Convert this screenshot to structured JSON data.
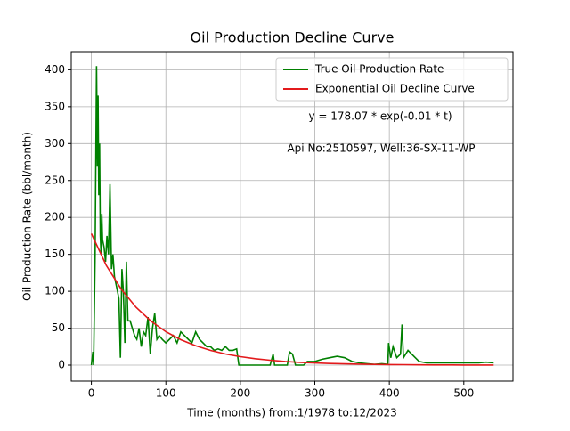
{
  "chart_data": {
    "type": "line",
    "title": "Oil Production Decline Curve",
    "xlabel": "Time (months) from:1/1978 to:12/2023",
    "ylabel": "Oil Production Rate (bbl/month)",
    "annotations": [
      "y = 178.07 * exp(-0.01 * t)",
      "Api No:2510597, Well:36-SX-11-WP"
    ],
    "xlim": [
      -27,
      566
    ],
    "ylim": [
      -21.7,
      424.6
    ],
    "xticks": [
      0,
      100,
      200,
      300,
      400,
      500
    ],
    "yticks": [
      0,
      50,
      100,
      150,
      200,
      250,
      300,
      350,
      400
    ],
    "grid": true,
    "legend": "upper right",
    "series": [
      {
        "name": "True Oil Production Rate",
        "color": "#008000",
        "x": [
          0,
          2,
          3,
          5,
          7,
          8,
          9,
          10,
          11,
          12,
          13,
          14,
          15,
          17,
          19,
          21,
          23,
          25,
          27,
          29,
          31,
          33,
          35,
          37,
          39,
          41,
          43,
          45,
          47,
          49,
          52,
          55,
          58,
          61,
          64,
          67,
          70,
          73,
          76,
          79,
          82,
          85,
          88,
          91,
          95,
          100,
          105,
          110,
          115,
          120,
          125,
          130,
          135,
          140,
          145,
          150,
          155,
          160,
          165,
          170,
          175,
          180,
          185,
          190,
          195,
          198,
          210,
          240,
          244,
          246,
          255,
          263,
          266,
          270,
          274,
          285,
          290,
          300,
          310,
          320,
          330,
          340,
          350,
          360,
          370,
          380,
          390,
          398,
          399,
          402,
          405,
          410,
          415,
          417,
          419,
          425,
          430,
          440,
          450,
          460,
          480,
          500,
          520,
          530,
          540
        ],
        "values": [
          0,
          18,
          0,
          150,
          405,
          270,
          365,
          230,
          300,
          175,
          150,
          205,
          170,
          160,
          140,
          175,
          150,
          245,
          130,
          150,
          120,
          110,
          100,
          90,
          10,
          130,
          100,
          30,
          140,
          60,
          60,
          50,
          40,
          35,
          50,
          25,
          45,
          40,
          65,
          15,
          50,
          70,
          35,
          40,
          35,
          30,
          35,
          40,
          30,
          45,
          40,
          35,
          30,
          45,
          35,
          30,
          25,
          25,
          20,
          22,
          20,
          25,
          20,
          20,
          22,
          0,
          0,
          0,
          15,
          0,
          0,
          0,
          18,
          15,
          0,
          0,
          5,
          5,
          8,
          10,
          12,
          10,
          5,
          3,
          2,
          1,
          2,
          1,
          30,
          10,
          25,
          10,
          15,
          55,
          10,
          20,
          15,
          5,
          3,
          3,
          3,
          3,
          3,
          4,
          3
        ]
      },
      {
        "name": "Exponential Oil Decline Curve",
        "color": "#e31a1c",
        "x": [
          0,
          20,
          40,
          60,
          80,
          100,
          120,
          140,
          160,
          180,
          200,
          220,
          240,
          260,
          280,
          300,
          320,
          340,
          360,
          380,
          400,
          420,
          440,
          460,
          480,
          500,
          520,
          540
        ],
        "values": [
          178,
          135.1,
          103,
          78.3,
          59.6,
          45.3,
          34.4,
          26.2,
          19.9,
          15.1,
          11.5,
          8.7,
          6.6,
          5.0,
          3.8,
          2.9,
          2.2,
          1.7,
          1.3,
          1.0,
          0.7,
          0.6,
          0.4,
          0.3,
          0.25,
          0.19,
          0.14,
          0.1
        ]
      }
    ]
  }
}
